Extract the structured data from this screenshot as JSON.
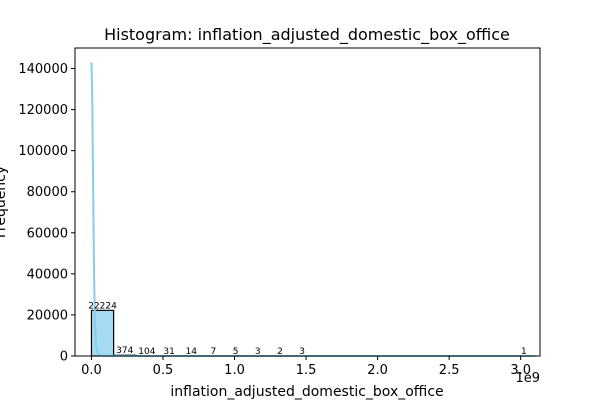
{
  "chart_data": {
    "type": "bar",
    "title": "Histogram: inflation_adjusted_domestic_box_office",
    "xlabel": "inflation_adjusted_domestic_box_office",
    "ylabel": "Frequency",
    "x_offset_text": "1e9",
    "xlim": [
      -0.115,
      3.135
    ],
    "ylim": [
      0,
      150000
    ],
    "x_ticks": [
      0.0,
      0.5,
      1.0,
      1.5,
      2.0,
      2.5,
      3.0
    ],
    "x_tick_labels": [
      "0.0",
      "0.5",
      "1.0",
      "1.5",
      "2.0",
      "2.5",
      "3.0"
    ],
    "y_ticks": [
      0,
      20000,
      40000,
      60000,
      80000,
      100000,
      120000,
      140000
    ],
    "y_tick_labels": [
      "0",
      "20000",
      "40000",
      "60000",
      "80000",
      "100000",
      "120000",
      "140000"
    ],
    "bins": [
      {
        "x0": 0.0,
        "x1": 0.155,
        "count": 22224,
        "label": "22224"
      },
      {
        "x0": 0.155,
        "x1": 0.31,
        "count": 374,
        "label": "374"
      },
      {
        "x0": 0.31,
        "x1": 0.465,
        "count": 104,
        "label": "104"
      },
      {
        "x0": 0.465,
        "x1": 0.62,
        "count": 31,
        "label": "31"
      },
      {
        "x0": 0.62,
        "x1": 0.775,
        "count": 14,
        "label": "14"
      },
      {
        "x0": 0.775,
        "x1": 0.93,
        "count": 7,
        "label": "7"
      },
      {
        "x0": 0.93,
        "x1": 1.085,
        "count": 5,
        "label": "5"
      },
      {
        "x0": 1.085,
        "x1": 1.24,
        "count": 3,
        "label": "3"
      },
      {
        "x0": 1.24,
        "x1": 1.395,
        "count": 2,
        "label": "2"
      },
      {
        "x0": 1.395,
        "x1": 1.55,
        "count": 3,
        "label": "3"
      },
      {
        "x0": 2.945,
        "x1": 3.1,
        "count": 1,
        "label": "1"
      }
    ],
    "kde": {
      "x": [
        0.0,
        0.005,
        0.01,
        0.015,
        0.02,
        0.025,
        0.03,
        0.04,
        0.05,
        0.07,
        0.1,
        0.15,
        0.25,
        0.5,
        1.0,
        1.5,
        2.0,
        2.5,
        3.1
      ],
      "y": [
        143000,
        128000,
        96000,
        60000,
        32000,
        15000,
        7000,
        2000,
        800,
        300,
        150,
        60,
        20,
        5,
        2,
        1,
        0,
        0,
        0
      ]
    },
    "grid": false,
    "colors": {
      "bar_fill": "#87ceeb",
      "bar_fill_opacity": 0.75,
      "bar_edge": "#000000",
      "kde_line": "#87ceeb"
    }
  }
}
